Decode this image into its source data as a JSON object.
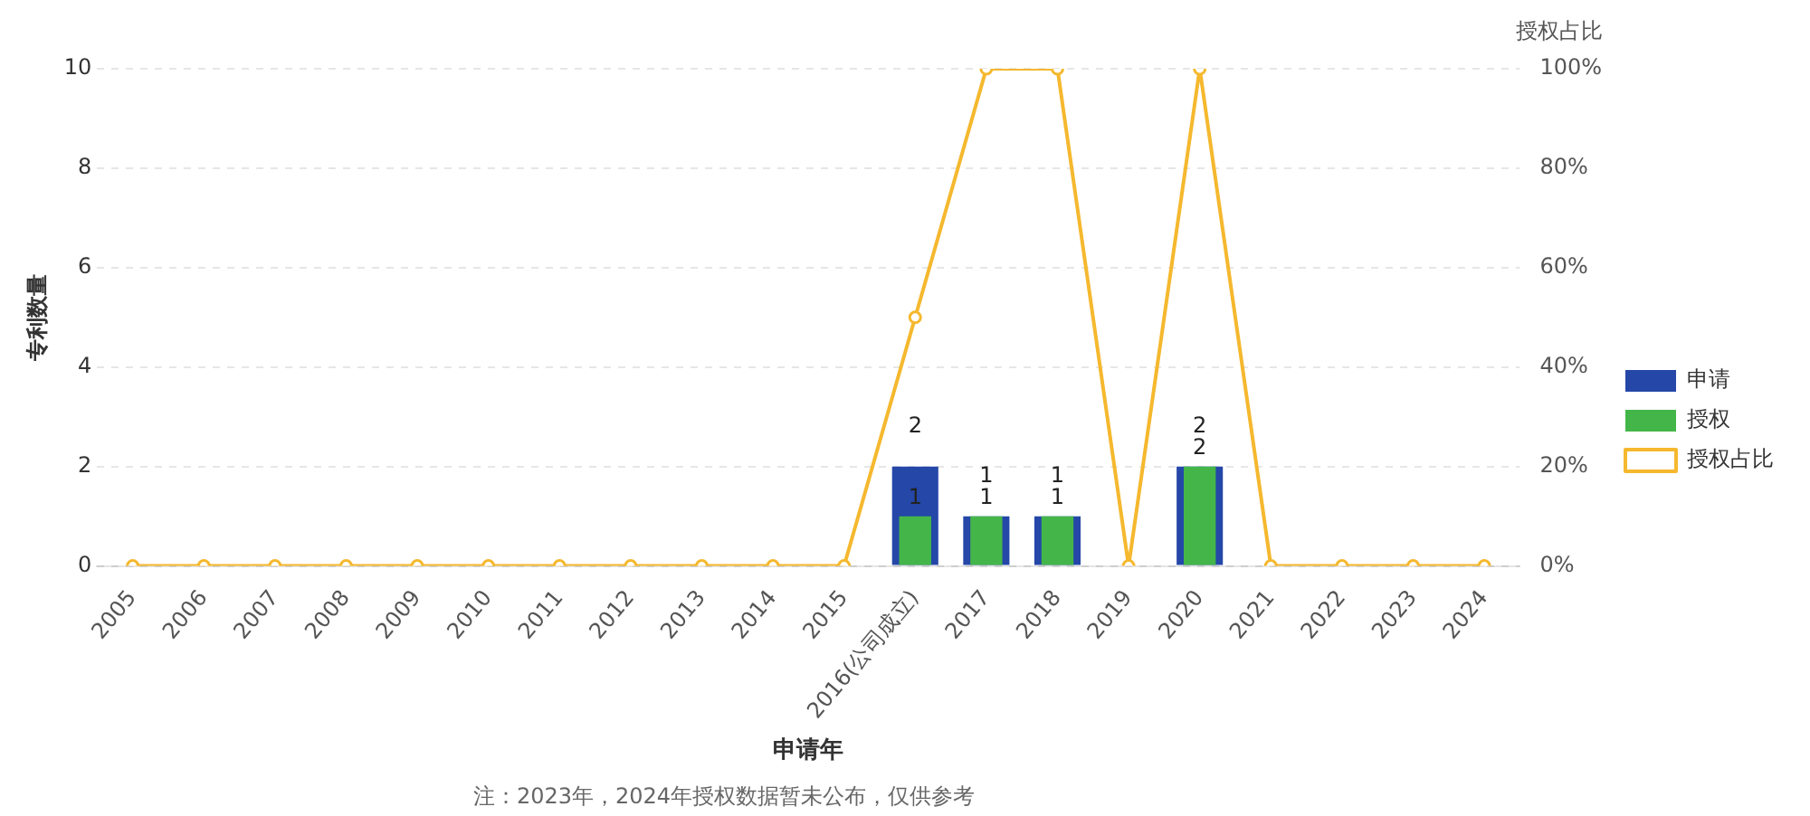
{
  "chart_data": {
    "type": "bar",
    "xlabel": "申请年",
    "ylabel": "专利数量",
    "y2label": "授权占比",
    "categories": [
      "2005",
      "2006",
      "2007",
      "2008",
      "2009",
      "2010",
      "2011",
      "2012",
      "2013",
      "2014",
      "2015",
      "2016(公司成立)",
      "2017",
      "2018",
      "2019",
      "2020",
      "2021",
      "2022",
      "2023",
      "2024"
    ],
    "series": [
      {
        "name": "申请",
        "color": "#2447a8",
        "values": [
          0,
          0,
          0,
          0,
          0,
          0,
          0,
          0,
          0,
          0,
          0,
          2,
          1,
          1,
          0,
          2,
          0,
          0,
          0,
          0
        ],
        "value_labels": [
          null,
          null,
          null,
          null,
          null,
          null,
          null,
          null,
          null,
          null,
          null,
          "2",
          "1",
          "1",
          null,
          "2",
          null,
          null,
          null,
          null
        ]
      },
      {
        "name": "授权",
        "color": "#44b649",
        "values": [
          0,
          0,
          0,
          0,
          0,
          0,
          0,
          0,
          0,
          0,
          0,
          1,
          1,
          1,
          0,
          2,
          0,
          0,
          0,
          0
        ],
        "value_labels": [
          null,
          null,
          null,
          null,
          null,
          null,
          null,
          null,
          null,
          null,
          null,
          "1",
          "1",
          "1",
          null,
          "2",
          null,
          null,
          null,
          null
        ]
      },
      {
        "name": "授权占比",
        "type": "line",
        "axis": "y2",
        "color": "#f5b82e",
        "values": [
          0,
          0,
          0,
          0,
          0,
          0,
          0,
          0,
          0,
          0,
          0,
          50,
          100,
          100,
          0,
          100,
          0,
          0,
          0,
          0
        ]
      }
    ],
    "ylim": [
      0,
      10
    ],
    "yticks": [
      0,
      2,
      4,
      6,
      8,
      10
    ],
    "y2lim": [
      0,
      100
    ],
    "y2ticks": [
      {
        "value": 0,
        "label": "0%"
      },
      {
        "value": 20,
        "label": "20%"
      },
      {
        "value": 40,
        "label": "40%"
      },
      {
        "value": 60,
        "label": "60%"
      },
      {
        "value": 80,
        "label": "80%"
      },
      {
        "value": 100,
        "label": "100%"
      }
    ],
    "grid": "y",
    "legend": "right",
    "marker": "circle",
    "line_style": "solid",
    "annotations": [
      "注：2023年，2024年授权数据暂未公布，仅供参考"
    ]
  }
}
